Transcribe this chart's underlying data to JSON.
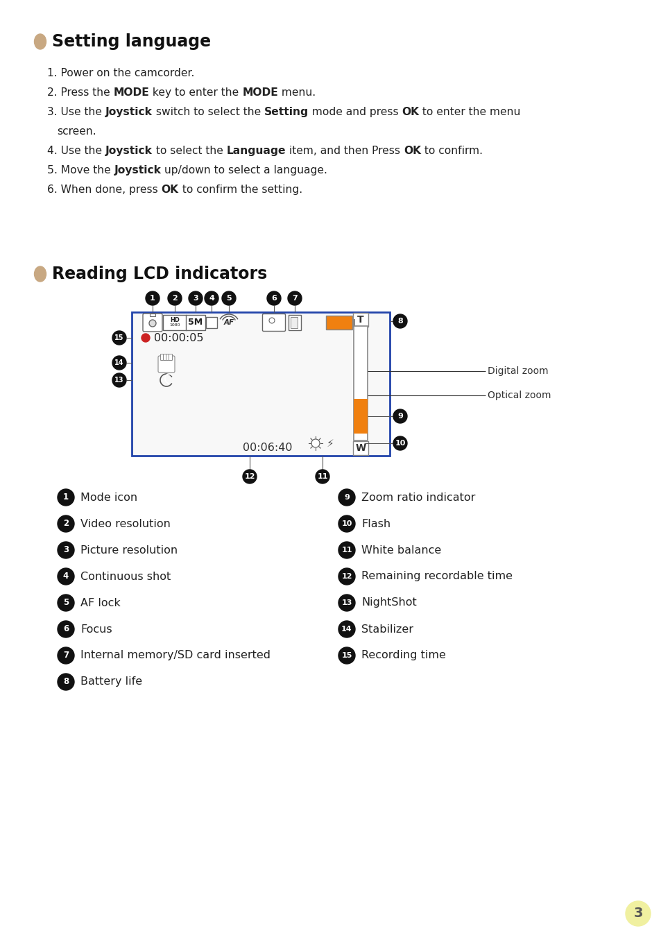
{
  "bg_color": "#ffffff",
  "title1": "Setting language",
  "title2": "Reading LCD indicators",
  "bullet_color": "#c8a882",
  "orange_color": "#f08010",
  "red_color": "#cc2222",
  "dark_color": "#111111",
  "blue_border": "#2244aa",
  "number_bg": "#111111",
  "number_fg": "#ffffff",
  "page_number": "3",
  "page_num_bg": "#f0f0a0",
  "left_items": [
    [
      "1",
      "Mode icon"
    ],
    [
      "2",
      "Video resolution"
    ],
    [
      "3",
      "Picture resolution"
    ],
    [
      "4",
      "Continuous shot"
    ],
    [
      "5",
      "AF lock"
    ],
    [
      "6",
      "Focus"
    ],
    [
      "7",
      "Internal memory/SD card inserted"
    ],
    [
      "8",
      "Battery life"
    ]
  ],
  "right_items": [
    [
      "9",
      "Zoom ratio indicator"
    ],
    [
      "10",
      "Flash"
    ],
    [
      "11",
      "White balance"
    ],
    [
      "12",
      "Remaining recordable time"
    ],
    [
      "13",
      "NightShot"
    ],
    [
      "14",
      "Stabilizer"
    ],
    [
      "15",
      "Recording time"
    ]
  ]
}
